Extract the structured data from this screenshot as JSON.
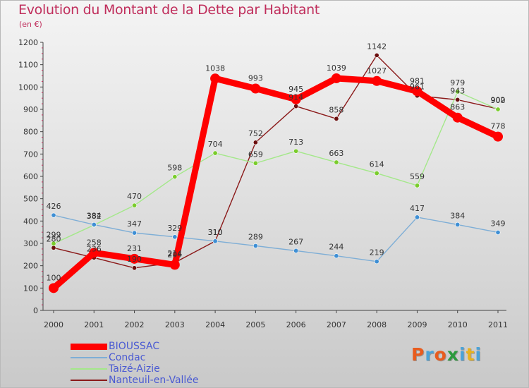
{
  "header": {
    "title": "Evolution du Montant de la Dette par Habitant",
    "unit": "(en €)"
  },
  "brand": {
    "letters": [
      "P",
      "r",
      "o",
      "x",
      "i",
      "t",
      "i"
    ],
    "colors": [
      "#e85c1e",
      "#4aa3d8",
      "#e85c1e",
      "#2c9a3c",
      "#4aa3d8",
      "#e8b21e",
      "#4aa3d8"
    ]
  },
  "chart_data": {
    "type": "line",
    "title": "Evolution du Montant de la Dette par Habitant",
    "ylabel": "(en €)",
    "xlabel": "",
    "x": [
      "2000",
      "2001",
      "2002",
      "2003",
      "2004",
      "2005",
      "2006",
      "2007",
      "2008",
      "2009",
      "2010",
      "2011"
    ],
    "ylim": [
      0,
      1200
    ],
    "yticks": [
      0,
      100,
      200,
      300,
      400,
      500,
      600,
      700,
      800,
      900,
      1000,
      1100,
      1200
    ],
    "grid": false,
    "legend_position": "bottom-left",
    "series": [
      {
        "name": "Nanteuil-en-Vallée",
        "color": "#8b1a1a",
        "dot_color": "#6b0f0f",
        "values": [
          280,
          236,
          190,
          214,
          310,
          752,
          914,
          858,
          1142,
          961,
          943,
          902
        ],
        "labels": [
          "280",
          "236",
          "190",
          "214",
          "310",
          "752",
          "914",
          "858",
          "1142",
          "961",
          "943",
          "902"
        ]
      },
      {
        "name": "Taizé-Aizie",
        "color": "#a4e88a",
        "dot_color": "#7acc2c",
        "values": [
          299,
          382,
          470,
          598,
          704,
          659,
          713,
          663,
          614,
          559,
          979,
          900
        ],
        "labels": [
          "299",
          "382",
          "470",
          "598",
          "704",
          "659",
          "713",
          "663",
          "614",
          "559",
          "979",
          "900"
        ]
      },
      {
        "name": "Condac",
        "color": "#7eaed6",
        "dot_color": "#3f8fd4",
        "values": [
          426,
          384,
          347,
          329,
          310,
          289,
          267,
          244,
          219,
          417,
          384,
          349
        ],
        "labels": [
          "426",
          "384",
          "347",
          "329",
          "310",
          "289",
          "267",
          "244",
          "219",
          "417",
          "384",
          "349"
        ]
      },
      {
        "name": "BIOUSSAC",
        "color": "#ff0000",
        "dot_color": "#ff0000",
        "values": [
          100,
          258,
          231,
          204,
          1038,
          993,
          945,
          1039,
          1027,
          981,
          863,
          778
        ],
        "labels": [
          "100",
          "258",
          "231",
          "204",
          "1038",
          "993",
          "945",
          "1039",
          "1027",
          "981",
          "863",
          "778"
        ]
      }
    ]
  },
  "legend": [
    {
      "label": "BIOUSSAC",
      "color": "#ff0000"
    },
    {
      "label": "Condac",
      "color": "#7eaed6"
    },
    {
      "label": "Taizé-Aizie",
      "color": "#a4e88a"
    },
    {
      "label": "Nanteuil-en-Vallée",
      "color": "#8b1a1a"
    }
  ]
}
